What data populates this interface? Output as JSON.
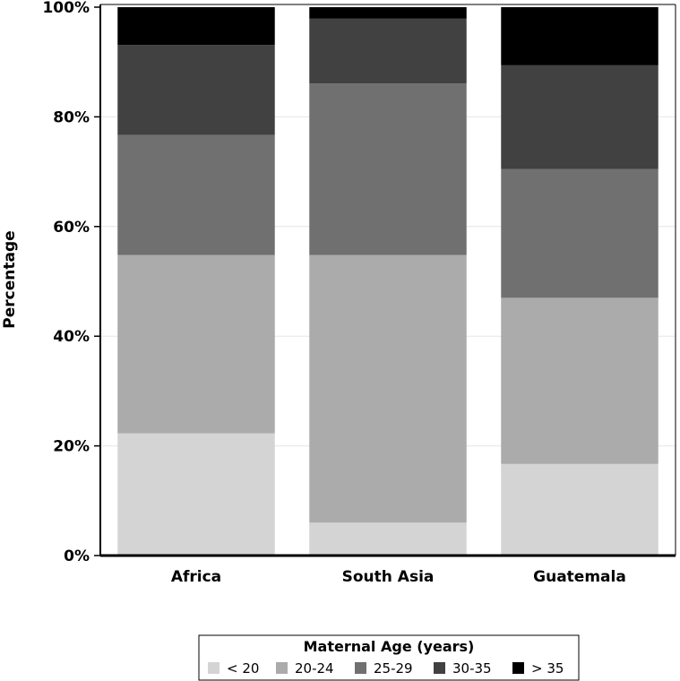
{
  "chart_data": {
    "type": "bar",
    "stacked": true,
    "ylabel": "Percentage",
    "xlabel": "",
    "ylim": [
      0,
      100
    ],
    "yticks": [
      "0%",
      "20%",
      "40%",
      "60%",
      "80%",
      "100%"
    ],
    "ytick_values": [
      0,
      20,
      40,
      60,
      80,
      100
    ],
    "grid": true,
    "categories": [
      "Africa",
      "South Asia",
      "Guatemala"
    ],
    "legend": {
      "title": "Maternal Age (years)",
      "placement": "bottom"
    },
    "series": [
      {
        "name": "< 20",
        "color": "#d4d4d4",
        "values": [
          22.3,
          6.0,
          16.7
        ]
      },
      {
        "name": "20-24",
        "color": "#ababab",
        "values": [
          32.5,
          48.8,
          30.3
        ]
      },
      {
        "name": "25-29",
        "color": "#707070",
        "values": [
          21.9,
          31.3,
          23.5
        ]
      },
      {
        "name": "30-35",
        "color": "#414141",
        "values": [
          16.4,
          11.8,
          18.9
        ]
      },
      {
        "name": "> 35",
        "color": "#000000",
        "values": [
          6.9,
          2.1,
          10.6
        ]
      }
    ]
  }
}
